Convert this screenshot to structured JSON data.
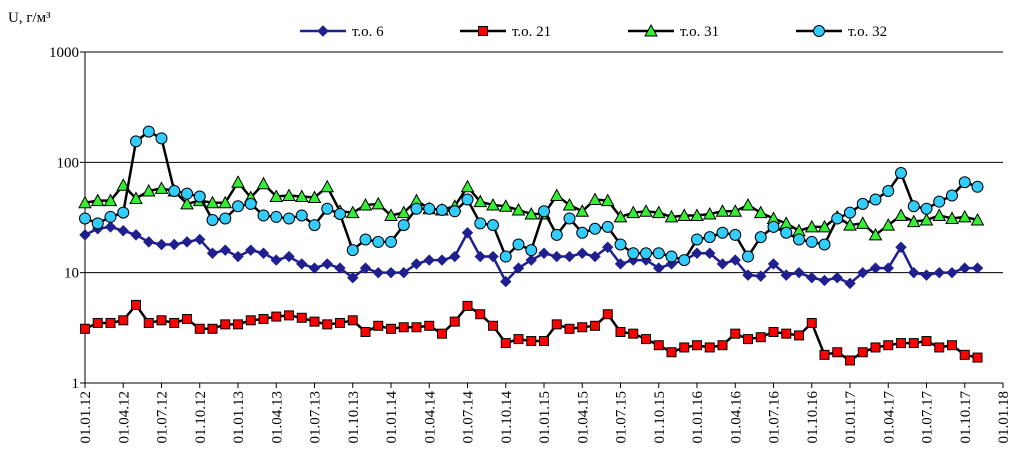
{
  "chart_data": {
    "type": "line",
    "y_label": "U, г/м³",
    "log_scale": true,
    "ylim": [
      1,
      1000
    ],
    "yticks": [
      1,
      10,
      100,
      1000
    ],
    "grid": true,
    "legend": "top",
    "xlim": [
      "01.01.12",
      "01.01.18"
    ],
    "xticks": [
      "01.01.12",
      "01.04.12",
      "01.07.12",
      "01.10.12",
      "01.01.13",
      "01.04.13",
      "01.07.13",
      "01.10.13",
      "01.01.14",
      "01.04.14",
      "01.07.14",
      "01.10.14",
      "01.01.15",
      "01.04.15",
      "01.07.15",
      "01.10.15",
      "01.01.16",
      "01.04.16",
      "01.07.16",
      "01.10.16",
      "01.01.17",
      "01.04.17",
      "01.07.17",
      "01.10.17",
      "01.01.18"
    ],
    "x": [
      "01.01.12",
      "01.02.12",
      "01.03.12",
      "01.04.12",
      "01.05.12",
      "01.06.12",
      "01.07.12",
      "01.08.12",
      "01.09.12",
      "01.10.12",
      "01.11.12",
      "01.12.12",
      "01.01.13",
      "01.02.13",
      "01.03.13",
      "01.04.13",
      "01.05.13",
      "01.06.13",
      "01.07.13",
      "01.08.13",
      "01.09.13",
      "01.10.13",
      "01.11.13",
      "01.12.13",
      "01.01.14",
      "01.02.14",
      "01.03.14",
      "01.04.14",
      "01.05.14",
      "01.06.14",
      "01.07.14",
      "01.08.14",
      "01.09.14",
      "01.10.14",
      "01.11.14",
      "01.12.14",
      "01.01.15",
      "01.02.15",
      "01.03.15",
      "01.04.15",
      "01.05.15",
      "01.06.15",
      "01.07.15",
      "01.08.15",
      "01.09.15",
      "01.10.15",
      "01.11.15",
      "01.12.15",
      "01.01.16",
      "01.02.16",
      "01.03.16",
      "01.04.16",
      "01.05.16",
      "01.06.16",
      "01.07.16",
      "01.08.16",
      "01.09.16",
      "01.10.16",
      "01.11.16",
      "01.12.16",
      "01.01.17",
      "01.02.17",
      "01.03.17",
      "01.04.17",
      "01.05.17",
      "01.06.17",
      "01.07.17",
      "01.08.17",
      "01.09.17",
      "01.10.17",
      "01.11.17"
    ],
    "series": [
      {
        "name": "т.о. 6",
        "color": "#1f1f8f",
        "line_color": "#1f1f8f",
        "marker": "diamond",
        "values": [
          22,
          25,
          26,
          24,
          22,
          19,
          18,
          18,
          19,
          20,
          15,
          16,
          14,
          16,
          15,
          13,
          14,
          12,
          11,
          12,
          11,
          9,
          11,
          10,
          10,
          10,
          12,
          13,
          13,
          14,
          23,
          14,
          14,
          8.3,
          11,
          13,
          15,
          14,
          14,
          15,
          14,
          17,
          12,
          13,
          13,
          11,
          12,
          13,
          15,
          15,
          12,
          13,
          9.5,
          9.3,
          12,
          9.5,
          10,
          9,
          8.5,
          9,
          8,
          10,
          11,
          11,
          17,
          10,
          9.5,
          10,
          10,
          11,
          11
        ]
      },
      {
        "name": "т.о. 21",
        "color": "#ff0000",
        "line_color": "#000000",
        "marker": "square",
        "values": [
          3.1,
          3.5,
          3.5,
          3.7,
          5.1,
          3.5,
          3.7,
          3.5,
          3.8,
          3.1,
          3.1,
          3.4,
          3.4,
          3.7,
          3.8,
          4.0,
          4.1,
          3.9,
          3.6,
          3.4,
          3.5,
          3.7,
          2.9,
          3.3,
          3.1,
          3.2,
          3.2,
          3.3,
          2.8,
          3.6,
          5.0,
          4.2,
          3.3,
          2.3,
          2.5,
          2.4,
          2.4,
          3.4,
          3.1,
          3.2,
          3.3,
          4.2,
          2.9,
          2.8,
          2.5,
          2.2,
          1.9,
          2.1,
          2.2,
          2.1,
          2.2,
          2.8,
          2.5,
          2.6,
          2.9,
          2.8,
          2.7,
          3.5,
          1.8,
          1.9,
          1.6,
          1.9,
          2.1,
          2.2,
          2.3,
          2.3,
          2.4,
          2.1,
          2.2,
          1.8,
          1.7
        ]
      },
      {
        "name": "т.о. 31",
        "color": "#33ee33",
        "line_color": "#000000",
        "marker": "triangle",
        "values": [
          43,
          45,
          45,
          62,
          47,
          55,
          58,
          55,
          42,
          45,
          43,
          43,
          66,
          48,
          64,
          49,
          50,
          49,
          48,
          60,
          36,
          35,
          41,
          42,
          33,
          35,
          45,
          38,
          37,
          40,
          60,
          44,
          41,
          40,
          37,
          34,
          34,
          50,
          41,
          36,
          46,
          45,
          32,
          35,
          36,
          35,
          32,
          33,
          33,
          34,
          36,
          36,
          41,
          35,
          31,
          28,
          24,
          26,
          26,
          32,
          27,
          28,
          22,
          27,
          33,
          29,
          30,
          33,
          31,
          32,
          30
        ]
      },
      {
        "name": "т.о. 32",
        "color": "#33ccff",
        "line_color": "#000000",
        "marker": "circle",
        "values": [
          31,
          28,
          32,
          35,
          155,
          190,
          165,
          55,
          52,
          49,
          30,
          31,
          40,
          42,
          33,
          32,
          31,
          33,
          27,
          38,
          34,
          16,
          20,
          19,
          19,
          27,
          38,
          38,
          37,
          36,
          46,
          28,
          27,
          14,
          18,
          16,
          36,
          22,
          31,
          23,
          25,
          26,
          18,
          15,
          15,
          15,
          14,
          13,
          20,
          21,
          23,
          22,
          14,
          21,
          26,
          23,
          20,
          19,
          18,
          31,
          35,
          42,
          46,
          55,
          80,
          40,
          38,
          44,
          50,
          66,
          60
        ]
      }
    ]
  }
}
